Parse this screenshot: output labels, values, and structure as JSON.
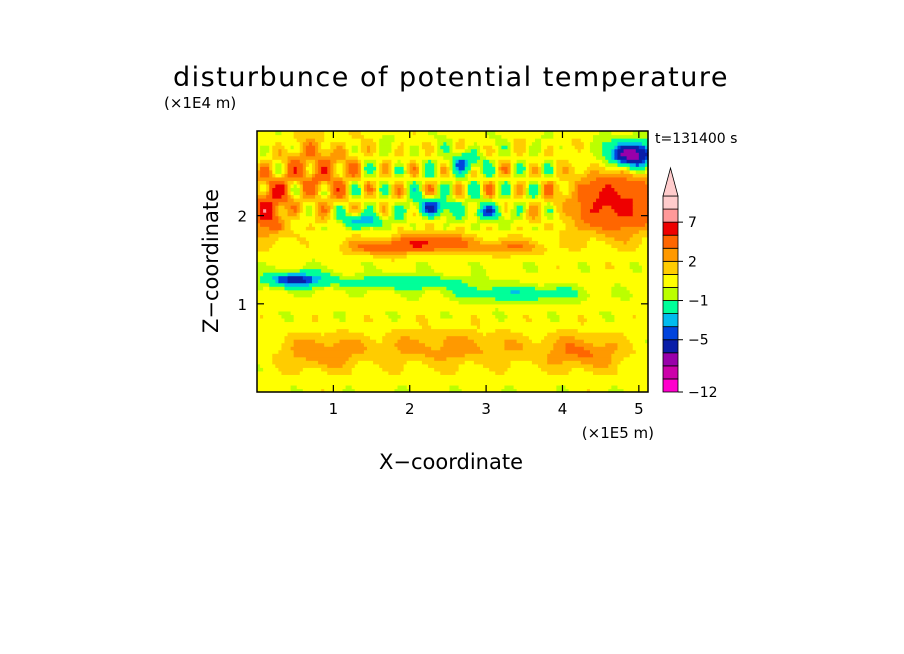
{
  "chart_data": {
    "type": "heatmap",
    "title": "disturbunce of potential temperature",
    "xlabel": "X−coordinate",
    "ylabel": "Z−coordinate",
    "x_unit": "(×1E5 m)",
    "y_unit": "(×1E4 m)",
    "time_label": "t=131400 s",
    "xlim": [
      0,
      5.12
    ],
    "ylim": [
      0,
      2.96
    ],
    "x_ticks": [
      {
        "value": 1,
        "label": "1"
      },
      {
        "value": 2,
        "label": "2"
      },
      {
        "value": 3,
        "label": "3"
      },
      {
        "value": 4,
        "label": "4"
      },
      {
        "value": 5,
        "label": "5"
      }
    ],
    "y_ticks": [
      {
        "value": 1,
        "label": "1"
      },
      {
        "value": 2,
        "label": "2"
      }
    ],
    "colorbar": {
      "levels": [
        -12,
        -11,
        -9,
        -7,
        -5,
        -4,
        -3,
        -1,
        0,
        1,
        2,
        3,
        5,
        7,
        9,
        11
      ],
      "colors": [
        "#ff00cc",
        "#cc00aa",
        "#9900aa",
        "#0a1ea8",
        "#0044dd",
        "#00bbee",
        "#00ff99",
        "#bbff00",
        "#ffff00",
        "#ffcc00",
        "#ff9900",
        "#ff6600",
        "#ee0000",
        "#ff9999",
        "#ffcccc"
      ],
      "labels": [
        {
          "value": -12,
          "label": "−12"
        },
        {
          "value": -5,
          "label": "−5"
        },
        {
          "value": -1,
          "label": "−1"
        },
        {
          "value": 2,
          "label": "2"
        },
        {
          "value": 7,
          "label": "7"
        }
      ],
      "extend": "max"
    },
    "field_features": [
      {
        "x": 4.7,
        "z": 2.15,
        "sx": 0.6,
        "sz": 0.35,
        "value": 5.5
      },
      {
        "x": 0.15,
        "z": 2.1,
        "sx": 0.25,
        "sz": 0.35,
        "value": 4.5
      },
      {
        "x": 0.8,
        "z": 2.5,
        "sx": 0.45,
        "sz": 0.35,
        "value": 3.0
      },
      {
        "x": 2.3,
        "z": 1.7,
        "sx": 0.45,
        "sz": 0.1,
        "value": 4.5
      },
      {
        "x": 1.6,
        "z": 1.65,
        "sx": 0.5,
        "sz": 0.09,
        "value": 3.0
      },
      {
        "x": 3.3,
        "z": 1.65,
        "sx": 0.5,
        "sz": 0.09,
        "value": 2.5
      },
      {
        "x": 4.9,
        "z": 2.7,
        "sx": 0.3,
        "sz": 0.15,
        "value": -9.0
      },
      {
        "x": 2.3,
        "z": 2.1,
        "sx": 0.25,
        "sz": 0.1,
        "value": -5.0
      },
      {
        "x": 1.4,
        "z": 1.95,
        "sx": 0.25,
        "sz": 0.08,
        "value": -4.5
      },
      {
        "x": 3.0,
        "z": 2.05,
        "sx": 0.2,
        "sz": 0.1,
        "value": -4.5
      },
      {
        "x": 2.7,
        "z": 2.6,
        "sx": 0.2,
        "sz": 0.12,
        "value": -4.0
      },
      {
        "x": 0.5,
        "z": 1.28,
        "sx": 0.4,
        "sz": 0.09,
        "value": -6.0
      },
      {
        "x": 1.9,
        "z": 1.25,
        "sx": 0.8,
        "sz": 0.08,
        "value": -3.0
      },
      {
        "x": 3.4,
        "z": 1.12,
        "sx": 0.8,
        "sz": 0.09,
        "value": -3.0
      },
      {
        "x": 2.5,
        "z": 0.5,
        "sx": 1.3,
        "sz": 0.2,
        "value": 2.0
      },
      {
        "x": 0.8,
        "z": 0.45,
        "sx": 0.5,
        "sz": 0.2,
        "value": 2.2
      },
      {
        "x": 4.3,
        "z": 0.45,
        "sx": 0.5,
        "sz": 0.2,
        "value": 2.5
      }
    ]
  }
}
